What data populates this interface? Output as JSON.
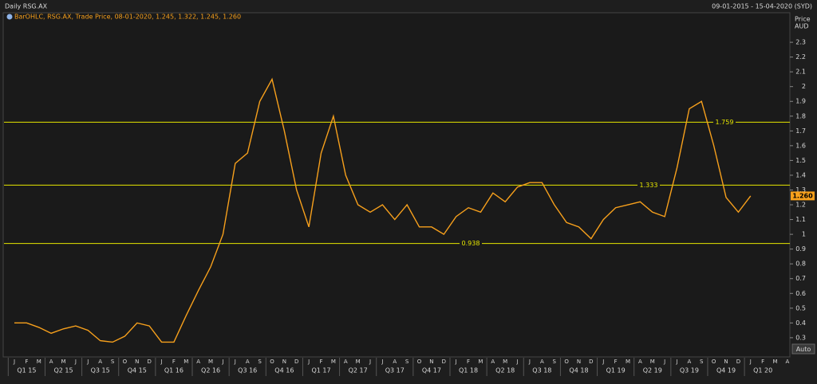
{
  "chart_data": {
    "type": "line",
    "title": "Daily RSG.AX",
    "subtitle": "09-01-2015 - 15-04-2020 (SYD)",
    "legend_text": "BarOHLC, RSG.AX, Trade Price, 08-01-2020, 1.245, 1.322, 1.245, 1.260",
    "y_axis_label": [
      "Price",
      "AUD"
    ],
    "button": "Auto",
    "categories": [
      "J",
      "F",
      "M",
      "A",
      "M",
      "J",
      "J",
      "A",
      "S",
      "O",
      "N",
      "D",
      "J",
      "F",
      "M",
      "A",
      "M",
      "J",
      "J",
      "A",
      "S",
      "O",
      "N",
      "D",
      "J",
      "F",
      "M",
      "A",
      "M",
      "J",
      "J",
      "A",
      "S",
      "O",
      "N",
      "D",
      "J",
      "F",
      "M",
      "A",
      "M",
      "J",
      "J",
      "A",
      "S",
      "O",
      "N",
      "D",
      "J",
      "F",
      "M",
      "A",
      "M",
      "J",
      "J",
      "A",
      "S",
      "O",
      "N",
      "D",
      "J",
      "F",
      "M",
      "A"
    ],
    "quarters": [
      "Q1 15",
      "Q2 15",
      "Q3 15",
      "Q4 15",
      "Q1 16",
      "Q2 16",
      "Q3 16",
      "Q4 16",
      "Q1 17",
      "Q2 17",
      "Q3 17",
      "Q4 17",
      "Q1 18",
      "Q2 18",
      "Q3 18",
      "Q4 18",
      "Q1 19",
      "Q2 19",
      "Q3 19",
      "Q4 19",
      "Q1 20"
    ],
    "series": [
      {
        "name": "RSG.AX",
        "color": "#f7a01c",
        "values": [
          0.4,
          0.4,
          0.37,
          0.33,
          0.36,
          0.38,
          0.35,
          0.28,
          0.27,
          0.31,
          0.4,
          0.38,
          0.27,
          0.27,
          0.45,
          0.62,
          0.78,
          1.0,
          1.48,
          1.55,
          1.9,
          2.05,
          1.7,
          1.3,
          1.05,
          1.55,
          1.8,
          1.4,
          1.2,
          1.15,
          1.2,
          1.1,
          1.2,
          1.05,
          1.05,
          1.0,
          1.12,
          1.18,
          1.15,
          1.28,
          1.22,
          1.32,
          1.35,
          1.35,
          1.2,
          1.08,
          1.05,
          0.97,
          1.1,
          1.18,
          1.2,
          1.22,
          1.15,
          1.12,
          1.45,
          1.85,
          1.9,
          1.6,
          1.25,
          1.15,
          1.26,
          null,
          null,
          null
        ]
      }
    ],
    "levels": [
      1.759,
      1.333,
      0.938
    ],
    "level_color": "#e6e600",
    "last_value": 1.26,
    "last_value_label": "1.260",
    "ylim": [
      0.17,
      2.5
    ],
    "yticks": [
      0.3,
      0.4,
      0.5,
      0.6,
      0.7,
      0.8,
      0.9,
      1,
      1.1,
      1.2,
      1.3,
      1.4,
      1.5,
      1.6,
      1.7,
      1.8,
      1.9,
      2,
      2.1,
      2.2,
      2.3
    ],
    "grid": false
  }
}
